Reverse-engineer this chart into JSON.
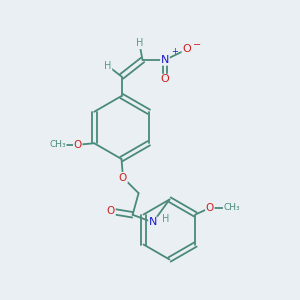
{
  "bg_color": "#eaeff3",
  "bond_color": "#4a8a7a",
  "atom_colors": {
    "O": "#cc2020",
    "N": "#1a1acc",
    "H": "#5a9a8a"
  },
  "figsize": [
    3.0,
    3.0
  ],
  "dpi": 100,
  "xlim": [
    0,
    10
  ],
  "ylim": [
    0,
    10
  ]
}
